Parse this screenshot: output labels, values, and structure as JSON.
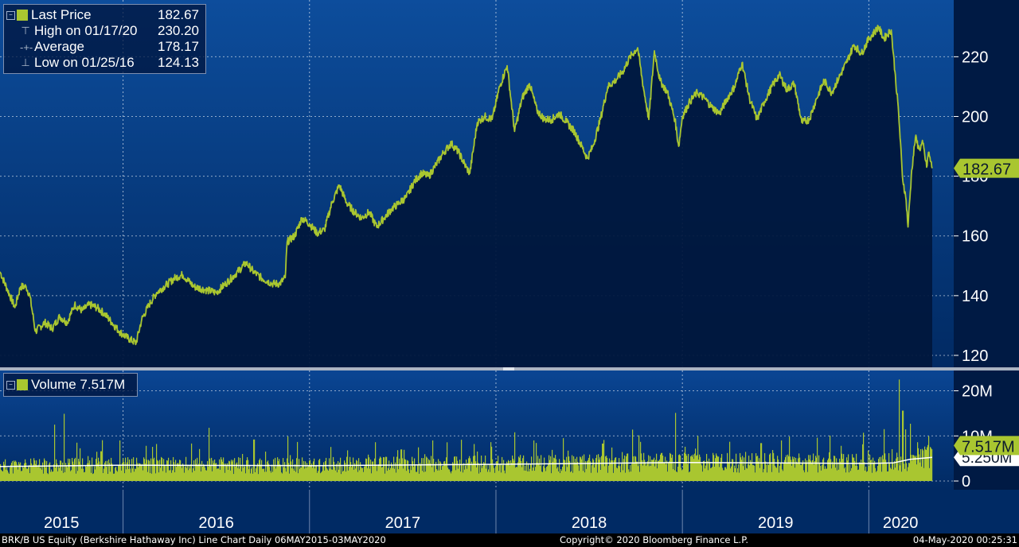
{
  "colors": {
    "accent": "#a9c630",
    "panel_top": "#0d4d9c",
    "panel_bottom": "#001f4e",
    "area": "#00173c",
    "axis_bg": "#001a44",
    "volume_avg": "#ffffff"
  },
  "price_legend": {
    "rows": [
      {
        "label": "Last Price",
        "value": "182.67",
        "icon": "square-swatch-icon"
      },
      {
        "label": "High on 01/17/20",
        "value": "230.20",
        "icon": "high-marker-icon"
      },
      {
        "label": "Average",
        "value": "178.17",
        "icon": "average-line-icon"
      },
      {
        "label": "Low on 01/25/16",
        "value": "124.13",
        "icon": "low-marker-icon"
      }
    ]
  },
  "volume_legend": {
    "label": "Volume 7.517M"
  },
  "footer": {
    "left": "BRK/B US Equity (Berkshire Hathaway Inc) Line Chart  Daily 06MAY2015-03MAY2020",
    "center": "Copyright© 2020 Bloomberg Finance L.P.",
    "right": "04-May-2020 00:25:31"
  },
  "chart_data": [
    {
      "type": "area",
      "panel": "price",
      "y_ticks": [
        120,
        140,
        160,
        180,
        200,
        220
      ],
      "ylim": [
        116,
        239
      ],
      "xlim": [
        2015.34,
        2020.34
      ],
      "x_year_labels": [
        "2015",
        "2016",
        "2017",
        "2018",
        "2019",
        "2020"
      ],
      "year_boundaries": [
        2016.0,
        2017.0,
        2018.0,
        2019.0,
        2020.0
      ],
      "last_value_label": "182.67",
      "series": [
        {
          "values": [
            [
              2015.34,
              148
            ],
            [
              2015.38,
              142
            ],
            [
              2015.42,
              136
            ],
            [
              2015.45,
              143
            ],
            [
              2015.48,
              143
            ],
            [
              2015.5,
              140
            ],
            [
              2015.53,
              128
            ],
            [
              2015.58,
              131
            ],
            [
              2015.62,
              129
            ],
            [
              2015.66,
              133
            ],
            [
              2015.7,
              131
            ],
            [
              2015.74,
              137
            ],
            [
              2015.78,
              135
            ],
            [
              2015.82,
              137
            ],
            [
              2015.86,
              136
            ],
            [
              2015.9,
              134
            ],
            [
              2015.94,
              131
            ],
            [
              2015.98,
              128
            ],
            [
              2016.02,
              126
            ],
            [
              2016.07,
              124.13
            ],
            [
              2016.1,
              132
            ],
            [
              2016.14,
              137
            ],
            [
              2016.18,
              141
            ],
            [
              2016.24,
              144
            ],
            [
              2016.28,
              146
            ],
            [
              2016.32,
              147
            ],
            [
              2016.38,
              143
            ],
            [
              2016.44,
              142
            ],
            [
              2016.5,
              141
            ],
            [
              2016.55,
              144
            ],
            [
              2016.6,
              147
            ],
            [
              2016.66,
              151
            ],
            [
              2016.7,
              148
            ],
            [
              2016.74,
              146
            ],
            [
              2016.8,
              144
            ],
            [
              2016.84,
              144
            ],
            [
              2016.87,
              146
            ],
            [
              2016.88,
              158
            ],
            [
              2016.92,
              160
            ],
            [
              2016.96,
              166
            ],
            [
              2017.0,
              164
            ],
            [
              2017.04,
              161
            ],
            [
              2017.08,
              162
            ],
            [
              2017.12,
              171
            ],
            [
              2017.16,
              177
            ],
            [
              2017.2,
              171
            ],
            [
              2017.24,
              168
            ],
            [
              2017.28,
              166
            ],
            [
              2017.32,
              168
            ],
            [
              2017.36,
              163
            ],
            [
              2017.4,
              166
            ],
            [
              2017.44,
              169
            ],
            [
              2017.48,
              171
            ],
            [
              2017.52,
              173
            ],
            [
              2017.56,
              178
            ],
            [
              2017.6,
              181
            ],
            [
              2017.64,
              180
            ],
            [
              2017.68,
              184
            ],
            [
              2017.72,
              188
            ],
            [
              2017.76,
              191
            ],
            [
              2017.8,
              188
            ],
            [
              2017.84,
              183
            ],
            [
              2017.86,
              181
            ],
            [
              2017.9,
              198
            ],
            [
              2017.94,
              200
            ],
            [
              2017.98,
              199
            ],
            [
              2018.02,
              210
            ],
            [
              2018.06,
              217
            ],
            [
              2018.08,
              206
            ],
            [
              2018.1,
              195
            ],
            [
              2018.14,
              206
            ],
            [
              2018.18,
              211
            ],
            [
              2018.22,
              202
            ],
            [
              2018.26,
              199
            ],
            [
              2018.3,
              199
            ],
            [
              2018.34,
              201
            ],
            [
              2018.38,
              198
            ],
            [
              2018.42,
              195
            ],
            [
              2018.46,
              190
            ],
            [
              2018.49,
              186
            ],
            [
              2018.52,
              190
            ],
            [
              2018.56,
              199
            ],
            [
              2018.6,
              210
            ],
            [
              2018.64,
              212
            ],
            [
              2018.68,
              215
            ],
            [
              2018.72,
              220
            ],
            [
              2018.76,
              223
            ],
            [
              2018.79,
              210
            ],
            [
              2018.82,
              199
            ],
            [
              2018.85,
              222
            ],
            [
              2018.88,
              212
            ],
            [
              2018.92,
              208
            ],
            [
              2018.96,
              199
            ],
            [
              2018.98,
              190
            ],
            [
              2019.0,
              200
            ],
            [
              2019.04,
              205
            ],
            [
              2019.08,
              208
            ],
            [
              2019.12,
              206
            ],
            [
              2019.16,
              203
            ],
            [
              2019.2,
              201
            ],
            [
              2019.24,
              206
            ],
            [
              2019.28,
              210
            ],
            [
              2019.32,
              218
            ],
            [
              2019.36,
              206
            ],
            [
              2019.4,
              199
            ],
            [
              2019.44,
              205
            ],
            [
              2019.48,
              210
            ],
            [
              2019.52,
              214
            ],
            [
              2019.56,
              209
            ],
            [
              2019.6,
              211
            ],
            [
              2019.64,
              198
            ],
            [
              2019.68,
              199
            ],
            [
              2019.72,
              206
            ],
            [
              2019.76,
              212
            ],
            [
              2019.8,
              208
            ],
            [
              2019.84,
              213
            ],
            [
              2019.88,
              218
            ],
            [
              2019.92,
              224
            ],
            [
              2019.96,
              221
            ],
            [
              2020.0,
              226
            ],
            [
              2020.04,
              229
            ],
            [
              2020.05,
              230.2
            ],
            [
              2020.08,
              226
            ],
            [
              2020.12,
              229
            ],
            [
              2020.14,
              215
            ],
            [
              2020.16,
              201
            ],
            [
              2020.18,
              180
            ],
            [
              2020.2,
              172
            ],
            [
              2020.21,
              163
            ],
            [
              2020.23,
              182
            ],
            [
              2020.25,
              193
            ],
            [
              2020.27,
              189
            ],
            [
              2020.29,
              191
            ],
            [
              2020.31,
              183
            ],
            [
              2020.32,
              188
            ],
            [
              2020.34,
              182.67
            ]
          ]
        }
      ]
    },
    {
      "type": "bar",
      "panel": "volume",
      "y_ticks": [
        0,
        10,
        20
      ],
      "y_tick_labels": [
        "0",
        "10M",
        "20M"
      ],
      "ylim": [
        0,
        24.5
      ],
      "unit": "M shares",
      "last_value_label": "7.517M",
      "average_label": "5.250M",
      "spikes": [
        [
          2015.63,
          12.5
        ],
        [
          2015.68,
          14.9
        ],
        [
          2015.75,
          8.5
        ],
        [
          2015.88,
          6.6
        ],
        [
          2015.98,
          9.0
        ],
        [
          2016.12,
          7.8
        ],
        [
          2016.46,
          11.8
        ],
        [
          2016.7,
          9.2
        ],
        [
          2016.88,
          9.9
        ],
        [
          2017.2,
          6.8
        ],
        [
          2017.35,
          8.6
        ],
        [
          2017.49,
          7.0
        ],
        [
          2017.66,
          9.0
        ],
        [
          2017.88,
          8.2
        ],
        [
          2018.1,
          10.8
        ],
        [
          2018.2,
          9.0
        ],
        [
          2018.36,
          9.5
        ],
        [
          2018.57,
          8.3
        ],
        [
          2018.73,
          11.4
        ],
        [
          2018.96,
          15.1
        ],
        [
          2019.08,
          10.0
        ],
        [
          2019.25,
          8.7
        ],
        [
          2019.42,
          8.4
        ],
        [
          2019.53,
          9.0
        ],
        [
          2019.72,
          9.6
        ],
        [
          2019.85,
          7.8
        ],
        [
          2019.97,
          10.7
        ],
        [
          2020.08,
          11.5
        ],
        [
          2020.16,
          22.5
        ],
        [
          2020.18,
          15.6
        ],
        [
          2020.22,
          12.7
        ],
        [
          2020.26,
          8.6
        ],
        [
          2020.3,
          7.0
        ],
        [
          2020.34,
          7.517
        ]
      ],
      "average_levels": [
        [
          2015.34,
          3.2
        ],
        [
          2016.0,
          3.5
        ],
        [
          2017.0,
          3.4
        ],
        [
          2018.0,
          3.7
        ],
        [
          2019.0,
          4.1
        ],
        [
          2020.0,
          3.9
        ],
        [
          2020.13,
          4.0
        ],
        [
          2020.22,
          4.8
        ],
        [
          2020.34,
          5.25
        ]
      ]
    }
  ]
}
